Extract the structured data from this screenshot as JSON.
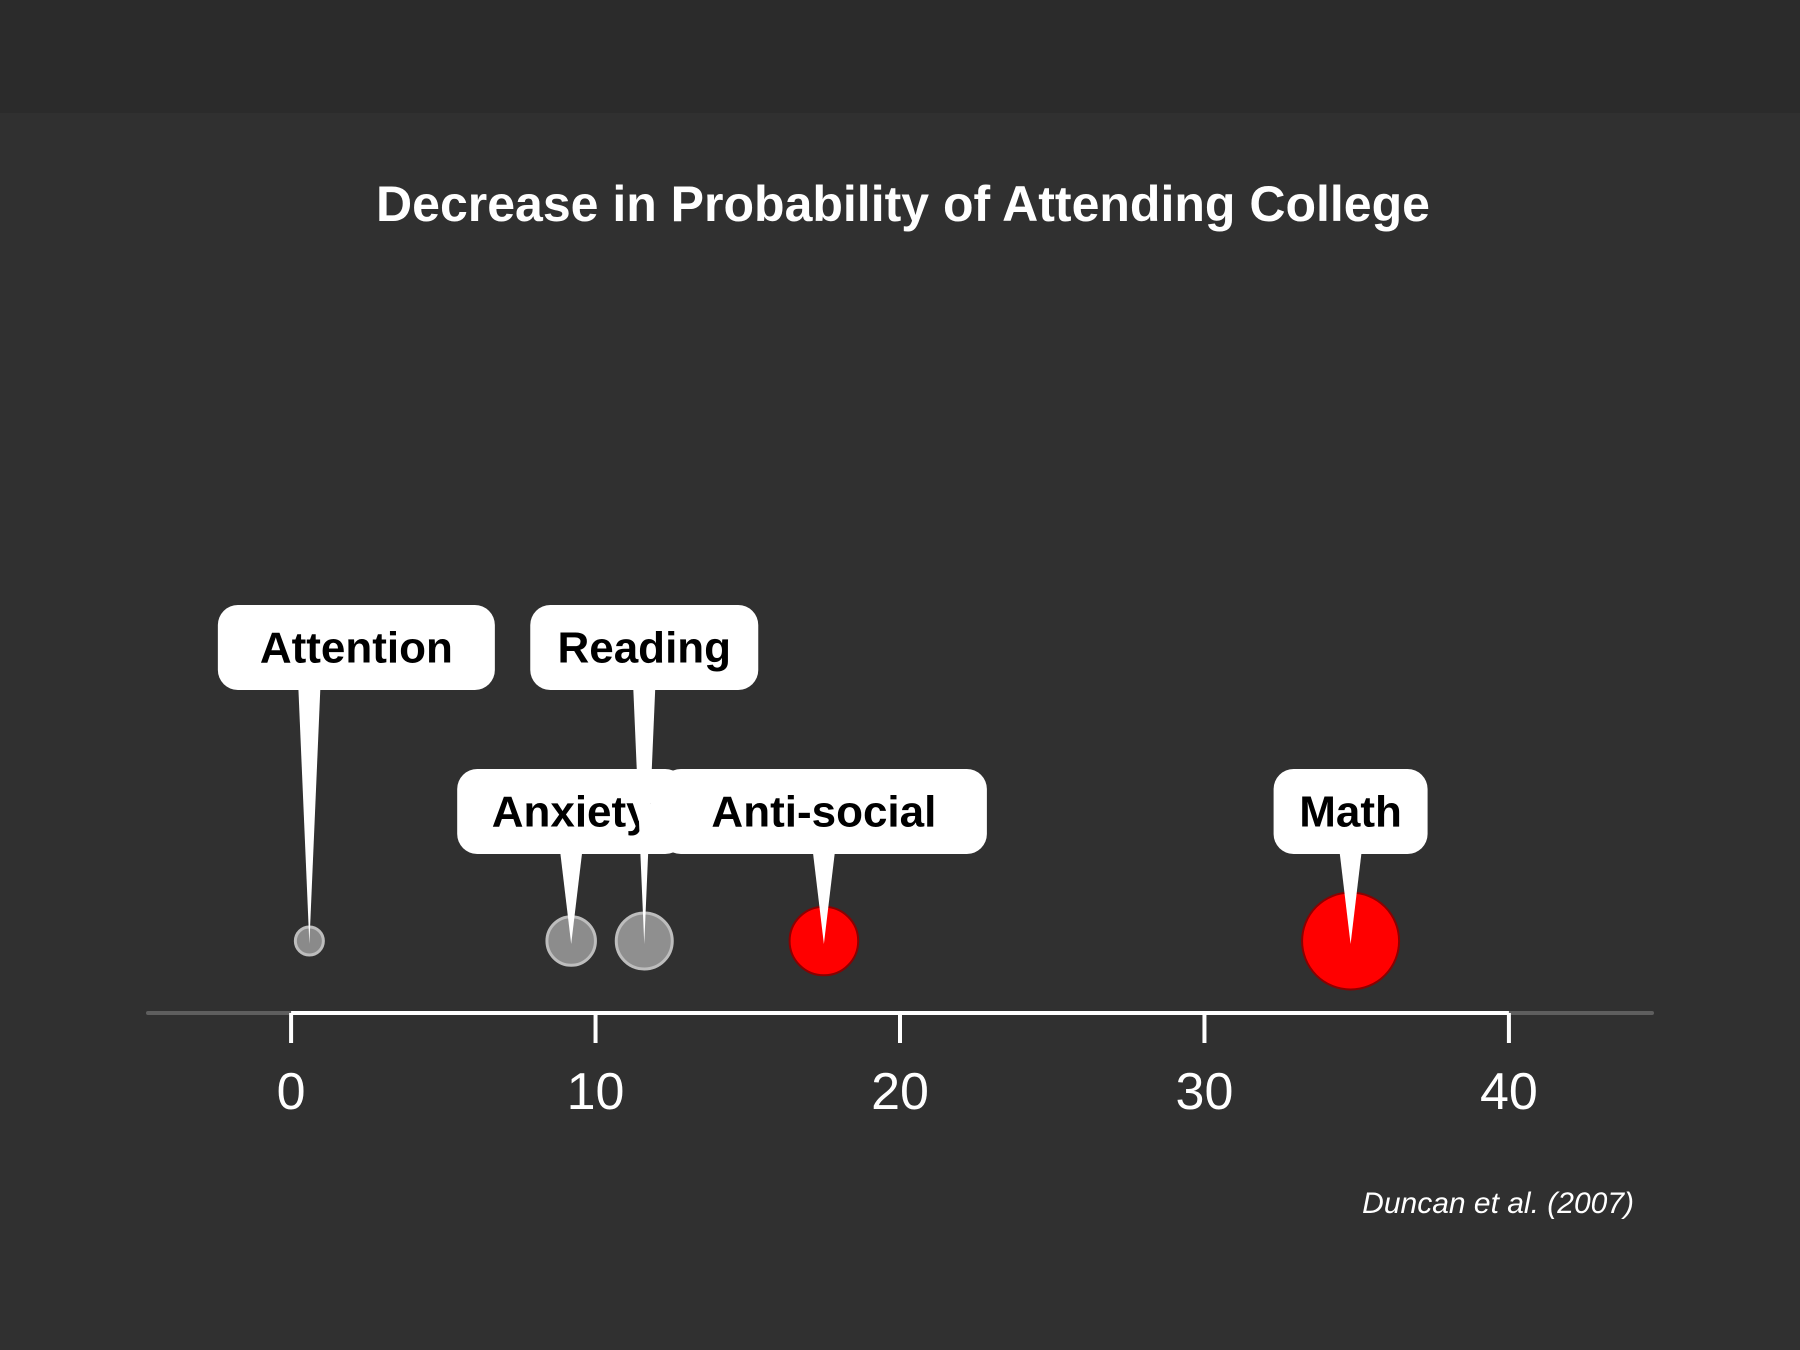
{
  "chart_data": {
    "type": "scatter",
    "title": "Decrease in Probability of Attending College",
    "xlabel": "",
    "ylabel": "",
    "xlim": [
      -4.7,
      44.7
    ],
    "x_ticks": [
      0,
      10,
      20,
      30,
      40
    ],
    "grid": false,
    "legend": "none",
    "series": [
      {
        "name": "Attention",
        "x": 0.6,
        "size": 1,
        "color": "#8a8a8a",
        "highlight": false
      },
      {
        "name": "Anxiety",
        "x": 9.2,
        "size": 3,
        "color": "#8c8c8c",
        "highlight": false
      },
      {
        "name": "Reading",
        "x": 11.6,
        "size": 4,
        "color": "#8f8f8f",
        "highlight": false
      },
      {
        "name": "Anti-social",
        "x": 17.5,
        "size": 6,
        "color": "#ff0000",
        "highlight": true
      },
      {
        "name": "Math",
        "x": 34.8,
        "size": 12,
        "color": "#ff0000",
        "highlight": true
      }
    ],
    "source": "Duncan et al. (2007)"
  }
}
